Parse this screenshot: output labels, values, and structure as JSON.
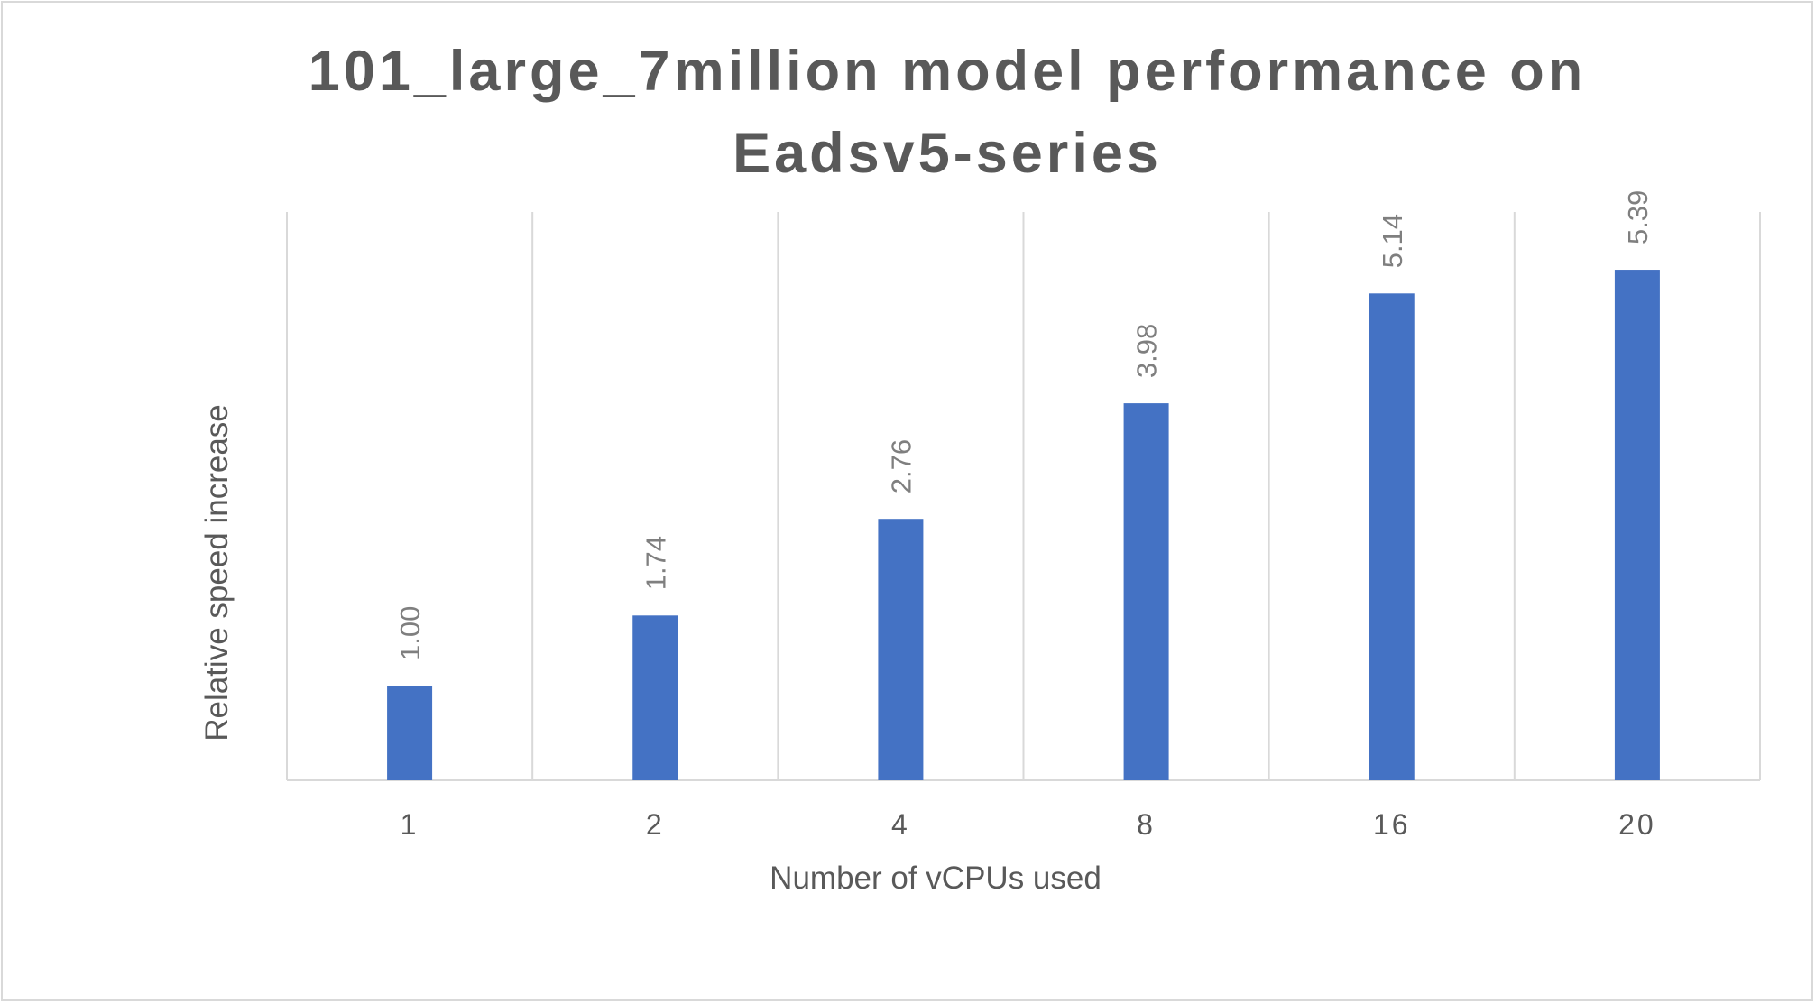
{
  "chart_data": {
    "type": "bar",
    "title_lines": [
      "101_large_7million model performance on",
      "Eadsv5-series"
    ],
    "xlabel": "Number of vCPUs used",
    "ylabel": "Relative speed increase",
    "categories": [
      "1",
      "2",
      "4",
      "8",
      "16",
      "20"
    ],
    "values": [
      1.0,
      1.74,
      2.76,
      3.98,
      5.14,
      5.39
    ],
    "data_labels": [
      "1.00",
      "1.74",
      "2.76",
      "3.98",
      "5.14",
      "5.39"
    ],
    "ylim": [
      0,
      6
    ],
    "grid": "vertical category separators",
    "legend": "none",
    "colors": {
      "bar": "#4472C4",
      "grid": "#d9d9d9",
      "text": "#595959",
      "data_label": "#7f7f7f"
    }
  }
}
